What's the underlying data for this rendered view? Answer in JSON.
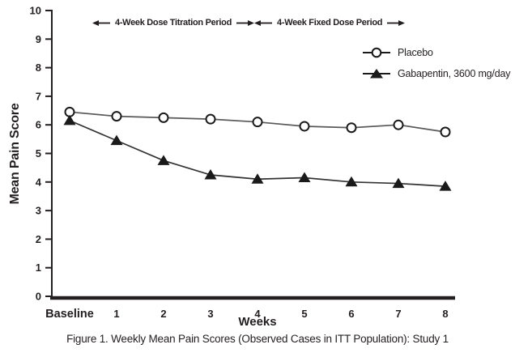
{
  "figure": {
    "caption": "Figure 1. Weekly Mean Pain Scores (Observed Cases in ITT Population): Study 1"
  },
  "icons": {
    "left_arrow": "arrow-left",
    "right_arrow": "arrow-right",
    "placebo_marker": "open-circle",
    "gabapentin_marker": "filled-triangle"
  },
  "colors": {
    "ink": "#231f20",
    "placebo_line": "#595959",
    "gabapentin_line": "#333333",
    "marker_fill": "#1a1a1a",
    "background": "#ffffff"
  },
  "chart_data": {
    "type": "line",
    "title": "",
    "xlabel": "Weeks",
    "ylabel": "Mean Pain Score",
    "categories": [
      "Baseline",
      "1",
      "2",
      "3",
      "4",
      "5",
      "6",
      "7",
      "8"
    ],
    "ylim": [
      0,
      10
    ],
    "yticks": [
      0,
      1,
      2,
      3,
      4,
      5,
      6,
      7,
      8,
      9,
      10
    ],
    "grid": false,
    "legend_position": "inside-top-right",
    "series": [
      {
        "name": "Placebo",
        "marker": "open-circle",
        "color": "#595959",
        "values": [
          6.45,
          6.3,
          6.25,
          6.2,
          6.1,
          5.95,
          5.9,
          6.0,
          5.75
        ]
      },
      {
        "name": "Gabapentin, 3600 mg/day",
        "marker": "filled-triangle",
        "color": "#333333",
        "values": [
          6.15,
          5.45,
          4.75,
          4.25,
          4.1,
          4.15,
          4.0,
          3.95,
          3.85
        ]
      }
    ],
    "annotations": [
      {
        "text": "4-Week Dose Titration Period",
        "arrows": "both",
        "span_weeks": [
          0,
          4
        ]
      },
      {
        "text": "4-Week Fixed Dose Period",
        "arrows": "both",
        "span_weeks": [
          4,
          8
        ]
      }
    ]
  }
}
